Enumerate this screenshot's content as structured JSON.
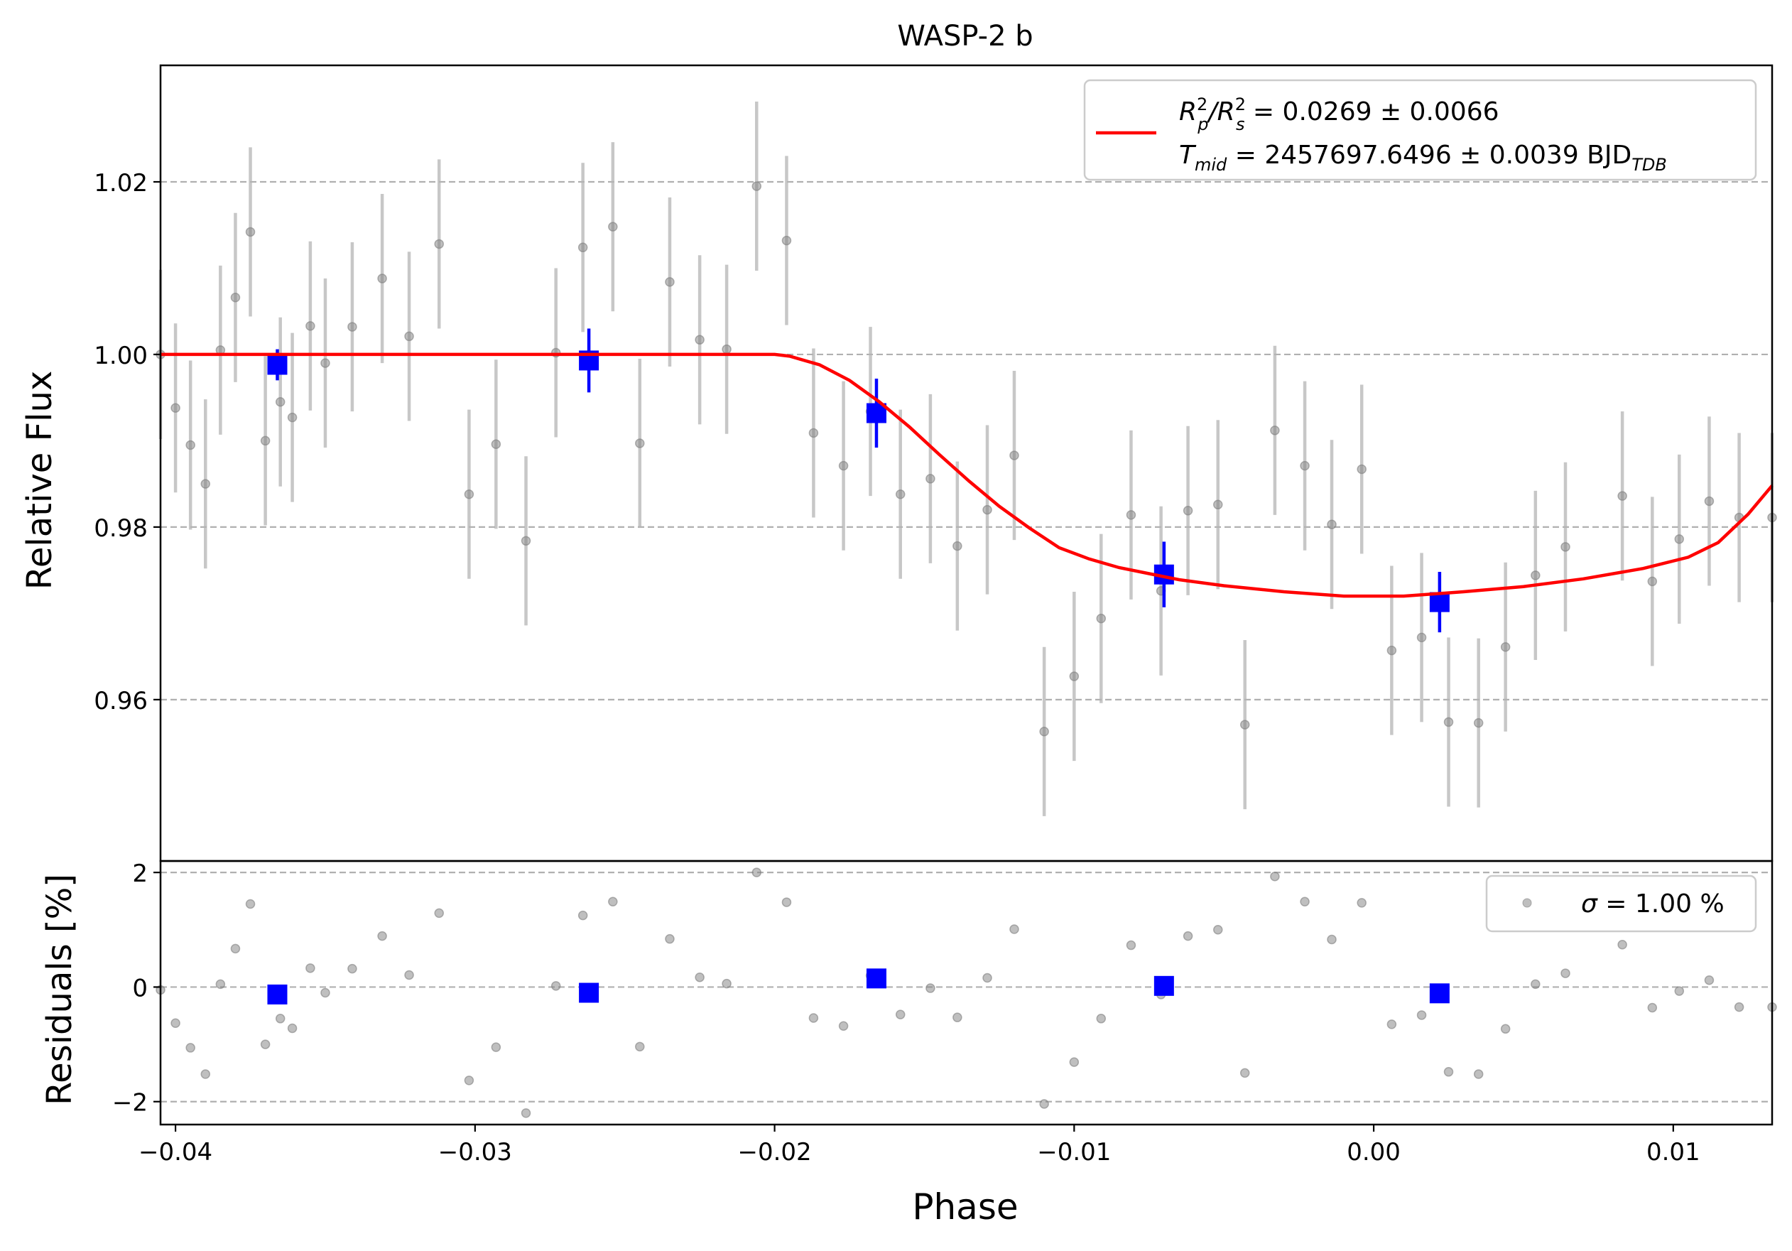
{
  "chart_data": [
    {
      "type": "scatter",
      "panel": "light curve",
      "title": "WASP-2 b",
      "xlabel": "",
      "ylabel": "Relative Flux",
      "xlim": [
        -0.0405,
        0.0133
      ],
      "ylim": [
        0.9413,
        1.0335
      ],
      "grid": "y-dashed",
      "legend_position": "upper right",
      "legend": {
        "line1_pre": "R",
        "line1_a_sup": "2",
        "line1_a_sub": "p",
        "line1_mid": "/R",
        "line1_b_sup": "2",
        "line1_b_sub": "s",
        "line1_value": " = 0.0269 ± 0.0066",
        "line2_pre": "T",
        "line2_sub": "mid",
        "line2_value": " = 2457697.6496 ± 0.0039 BJD",
        "line2_unit_sub": "TDB"
      },
      "x_ticks": [
        -0.04,
        -0.03,
        -0.02,
        -0.01,
        0.0,
        0.01
      ],
      "x_tick_labels": [
        "−0.04",
        "−0.03",
        "−0.02",
        "−0.01",
        "0.00",
        "0.01"
      ],
      "y_ticks": [
        0.96,
        0.98,
        1.0,
        1.02
      ],
      "y_tick_labels": [
        "0.96",
        "0.98",
        "1.00",
        "1.02"
      ],
      "series": [
        {
          "kind": "data",
          "color": "#808080",
          "yerr": 0.0098,
          "x": [
            -0.0405,
            -0.04,
            -0.0395,
            -0.039,
            -0.0385,
            -0.038,
            -0.0375,
            -0.037,
            -0.0365,
            -0.0361,
            -0.0355,
            -0.035,
            -0.0341,
            -0.0331,
            -0.0322,
            -0.0312,
            -0.0302,
            -0.0293,
            -0.0283,
            -0.0273,
            -0.0264,
            -0.0254,
            -0.0245,
            -0.0235,
            -0.0225,
            -0.0216,
            -0.0206,
            -0.0196,
            -0.0187,
            -0.0177,
            -0.0168,
            -0.0158,
            -0.0148,
            -0.0139,
            -0.0129,
            -0.012,
            -0.011,
            -0.01,
            -0.0091,
            -0.0081,
            -0.0071,
            -0.0062,
            -0.0052,
            -0.0043,
            -0.0033,
            -0.0023,
            -0.0014,
            -0.0004,
            0.0006,
            0.0016,
            0.0025,
            0.0035,
            0.0044,
            0.0054,
            0.0064,
            0.0083,
            0.0093,
            0.0102,
            0.0112,
            0.0122,
            0.0133
          ],
          "y": [
            1.0,
            0.9938,
            0.9895,
            0.985,
            1.0005,
            1.0066,
            1.0142,
            0.99,
            0.9945,
            0.9927,
            1.0033,
            0.999,
            1.0032,
            1.0088,
            1.0021,
            1.0128,
            0.9838,
            0.9896,
            0.9784,
            1.0002,
            1.0124,
            1.0148,
            0.9897,
            1.0084,
            1.0017,
            1.0006,
            1.0195,
            1.0132,
            0.9909,
            0.9871,
            0.9934,
            0.9838,
            0.9856,
            0.9778,
            0.982,
            0.9883,
            0.9563,
            0.9627,
            0.9694,
            0.9814,
            0.9726,
            0.9819,
            0.9826,
            0.9571,
            0.9912,
            0.9871,
            0.9803,
            0.9867,
            0.9657,
            0.9672,
            0.9574,
            0.9573,
            0.9661,
            0.9744,
            0.9777,
            0.9836,
            0.9737,
            0.9786,
            0.983,
            0.9811,
            0.9811
          ]
        },
        {
          "kind": "binned",
          "color": "#0000ff",
          "yerr": 0.002,
          "x": [
            -0.0366,
            -0.0262,
            -0.0166,
            -0.007,
            0.0022
          ],
          "y": [
            0.9988,
            0.9993,
            0.9932,
            0.9745,
            0.9713
          ],
          "yerr_list": [
            0.0018,
            0.0037,
            0.004,
            0.0038,
            0.0035
          ]
        },
        {
          "kind": "model",
          "color": "#ff0000",
          "x": [
            -0.0405,
            -0.03,
            -0.02,
            -0.0195,
            -0.0185,
            -0.0175,
            -0.0165,
            -0.0155,
            -0.0145,
            -0.0135,
            -0.0125,
            -0.0115,
            -0.0105,
            -0.0095,
            -0.0085,
            -0.0075,
            -0.0065,
            -0.005,
            -0.003,
            -0.001,
            0.001,
            0.003,
            0.005,
            0.007,
            0.009,
            0.0105,
            0.0115,
            0.0125,
            0.0133
          ],
          "y": [
            1.0,
            1.0,
            1.0,
            0.9998,
            0.9988,
            0.997,
            0.9945,
            0.9916,
            0.9884,
            0.9853,
            0.9824,
            0.9799,
            0.9776,
            0.9763,
            0.9753,
            0.9746,
            0.9739,
            0.9732,
            0.9725,
            0.972,
            0.972,
            0.9725,
            0.9731,
            0.974,
            0.9752,
            0.9765,
            0.9782,
            0.9815,
            0.9848
          ]
        }
      ]
    },
    {
      "type": "scatter",
      "panel": "residuals",
      "xlabel": "Phase",
      "ylabel": "Residuals [%]",
      "xlim": [
        -0.0405,
        0.0133
      ],
      "ylim": [
        -2.4,
        2.2
      ],
      "grid": "y-dashed",
      "legend_position": "upper right",
      "legend": {
        "label_symbol": "σ",
        "label_value": " = 1.00 %"
      },
      "x_ticks": [
        -0.04,
        -0.03,
        -0.02,
        -0.01,
        0.0,
        0.01
      ],
      "x_tick_labels": [
        "−0.04",
        "−0.03",
        "−0.02",
        "−0.01",
        "0.00",
        "0.01"
      ],
      "y_ticks": [
        -2,
        0,
        2
      ],
      "y_tick_labels": [
        "−2",
        "0",
        "2"
      ],
      "series": [
        {
          "kind": "residuals",
          "color": "#808080",
          "x": [
            -0.0405,
            -0.04,
            -0.0395,
            -0.039,
            -0.0385,
            -0.038,
            -0.0375,
            -0.037,
            -0.0365,
            -0.0361,
            -0.0355,
            -0.035,
            -0.0341,
            -0.0331,
            -0.0322,
            -0.0312,
            -0.0302,
            -0.0293,
            -0.0283,
            -0.0273,
            -0.0264,
            -0.0254,
            -0.0245,
            -0.0235,
            -0.0225,
            -0.0216,
            -0.0206,
            -0.0196,
            -0.0187,
            -0.0177,
            -0.0168,
            -0.0158,
            -0.0148,
            -0.0139,
            -0.0129,
            -0.012,
            -0.011,
            -0.01,
            -0.0091,
            -0.0081,
            -0.0071,
            -0.0062,
            -0.0052,
            -0.0043,
            -0.0033,
            -0.0023,
            -0.0014,
            -0.0004,
            0.0006,
            0.0016,
            0.0025,
            0.0035,
            0.0044,
            0.0054,
            0.0064,
            0.0083,
            0.0093,
            0.0102,
            0.0112,
            0.0122,
            0.0133
          ],
          "y": [
            -0.05,
            -0.63,
            -1.06,
            -1.52,
            0.05,
            0.67,
            1.45,
            -1.0,
            -0.55,
            -0.72,
            0.33,
            -0.1,
            0.32,
            0.89,
            0.21,
            1.29,
            -1.63,
            -1.05,
            -2.2,
            0.02,
            1.25,
            1.49,
            -1.04,
            0.84,
            0.17,
            0.06,
            2.0,
            1.48,
            -0.54,
            -0.68,
            0.2,
            -0.48,
            -0.02,
            -0.53,
            0.16,
            1.01,
            -2.04,
            -1.31,
            -0.55,
            0.73,
            -0.13,
            0.89,
            1.0,
            -1.5,
            1.93,
            1.49,
            0.83,
            1.47,
            -0.65,
            -0.49,
            -1.48,
            -1.52,
            -0.73,
            0.05,
            0.24,
            0.74,
            -0.36,
            -0.07,
            0.12,
            -0.35,
            -0.35
          ]
        },
        {
          "kind": "binned",
          "color": "#0000ff",
          "x": [
            -0.0366,
            -0.0262,
            -0.0166,
            -0.007,
            0.0022
          ],
          "y": [
            -0.13,
            -0.1,
            0.15,
            0.02,
            -0.11
          ]
        }
      ]
    }
  ]
}
